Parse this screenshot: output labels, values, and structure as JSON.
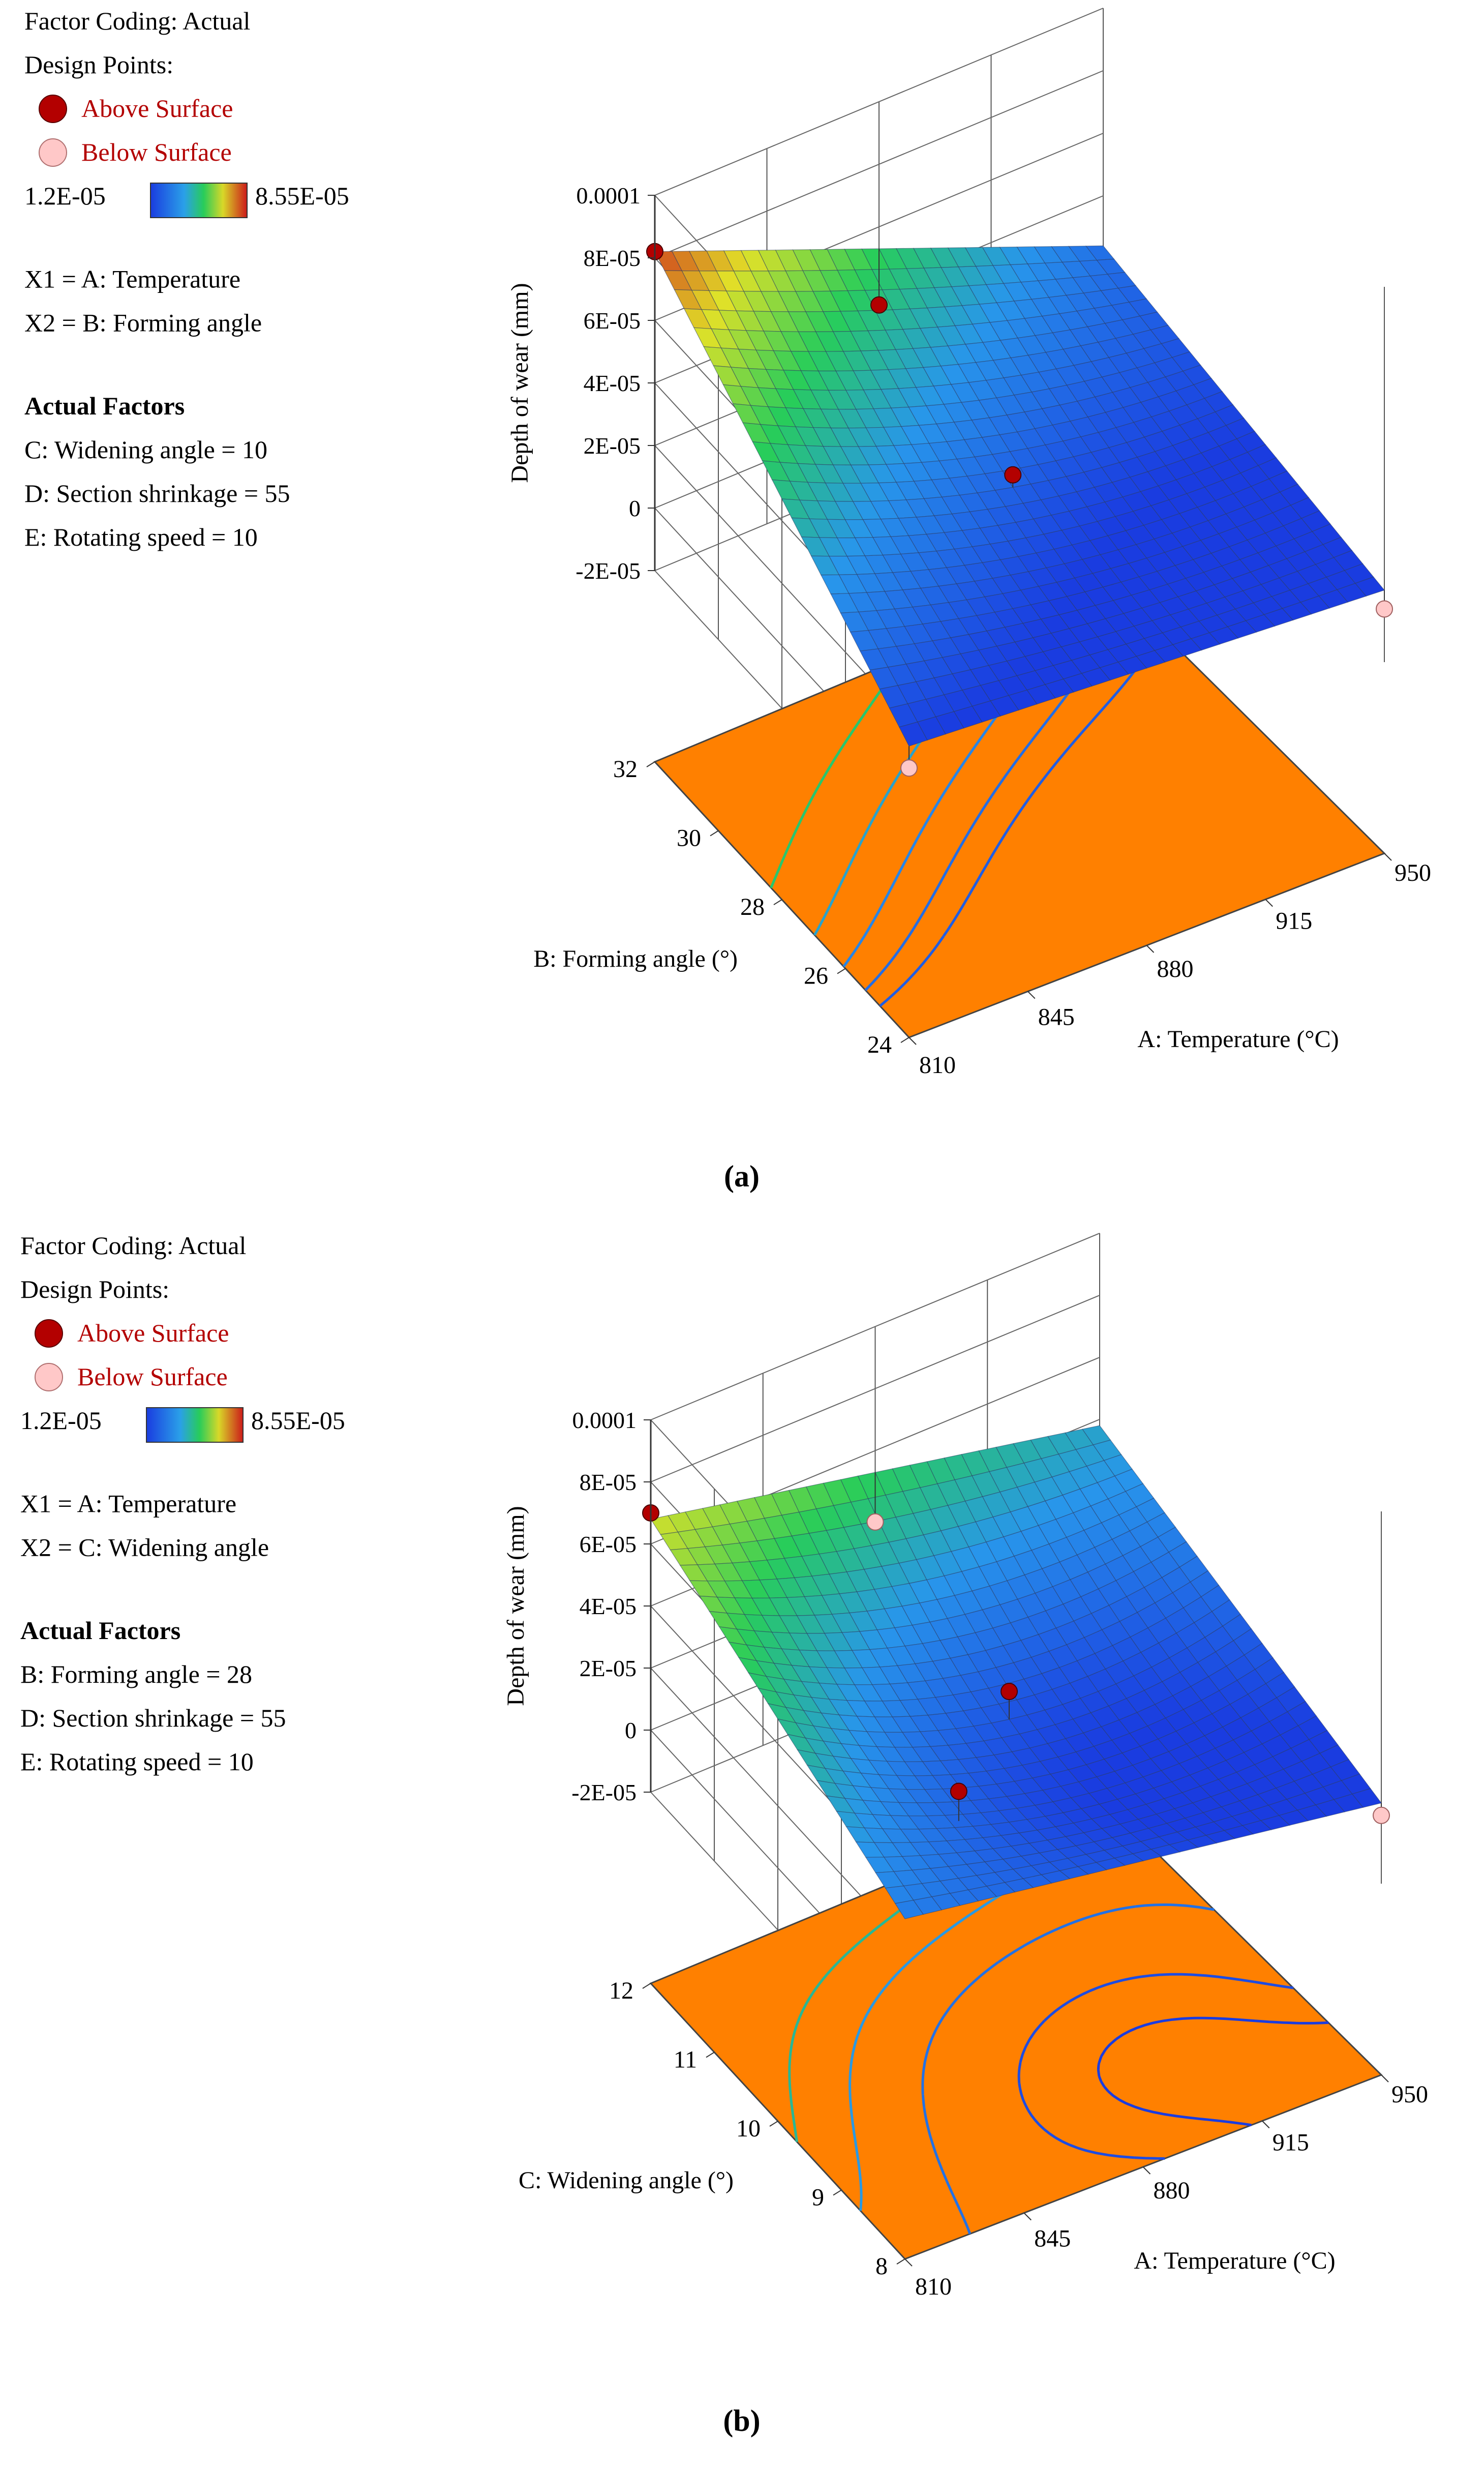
{
  "palette": {
    "orange": "#ff8000",
    "high": "#cc1a1a",
    "low": "#1a3ce0",
    "above": "#b30000",
    "below": "#ffc8c8",
    "legend_text": "#b30000"
  },
  "chart_data": [
    {
      "type": "surface3d",
      "panel_label": "(a)",
      "legend": {
        "coding": "Factor Coding: Actual",
        "design_points": "Design Points:",
        "above": "Above Surface",
        "below": "Below Surface",
        "min": "1.2E-05",
        "max": "8.55E-05"
      },
      "x1": "X1 = A: Temperature",
      "x2": "X2 = B: Forming angle",
      "actual_factors_title": "Actual Factors",
      "actual_factors": [
        "C: Widening angle = 10",
        "D: Section shrinkage = 55",
        "E: Rotating speed = 10"
      ],
      "xlabel": "A: Temperature (°C)",
      "ylabel": "B: Forming angle (°)",
      "zlabel": "Depth of wear (mm)",
      "x_ticks": [
        "810",
        "845",
        "880",
        "915",
        "950"
      ],
      "y_ticks": [
        "24",
        "26",
        "28",
        "30",
        "32"
      ],
      "z_ticks": [
        "-2E-05",
        "0",
        "2E-05",
        "4E-05",
        "6E-05",
        "8E-05",
        "0.0001"
      ],
      "xlim": [
        810,
        950
      ],
      "ylim": [
        24,
        32
      ],
      "zlim": [
        -2e-05,
        0.0001
      ],
      "surface": {
        "z00": 1.2e-05,
        "z01": 8.2e-05,
        "z10": 3e-06,
        "z11": 2.4e-05,
        "zc": 2.1e-05
      },
      "design_points": [
        {
          "x": 810,
          "y": 32,
          "z": 8.2e-05,
          "type": "above"
        },
        {
          "x": 880,
          "y": 32,
          "z": 3.5e-05,
          "type": "above"
        },
        {
          "x": 880,
          "y": 28,
          "z": 2.5e-05,
          "type": "above"
        },
        {
          "x": 950,
          "y": 24,
          "z": -3e-06,
          "type": "below"
        },
        {
          "x": 810,
          "y": 24,
          "z": 5e-06,
          "type": "below"
        }
      ],
      "contour_levels": [
        5e-05,
        3.8e-05,
        3e-05,
        2.4e-05,
        2e-05
      ]
    },
    {
      "type": "surface3d",
      "panel_label": "(b)",
      "legend": {
        "coding": "Factor Coding: Actual",
        "design_points": "Design Points:",
        "above": "Above Surface",
        "below": "Below Surface",
        "min": "1.2E-05",
        "max": "8.55E-05"
      },
      "x1": "X1 = A: Temperature",
      "x2": "X2 = C: Widening angle",
      "actual_factors_title": "Actual Factors",
      "actual_factors": [
        "B: Forming angle = 28",
        "D: Section shrinkage = 55",
        "E: Rotating speed = 10"
      ],
      "xlabel": "A: Temperature (°C)",
      "ylabel": "C: Widening angle (°)",
      "zlabel": "Depth of wear (mm)",
      "x_ticks": [
        "810",
        "845",
        "880",
        "915",
        "950"
      ],
      "y_ticks": [
        "8",
        "9",
        "10",
        "11",
        "12"
      ],
      "z_ticks": [
        "-2E-05",
        "0",
        "2E-05",
        "4E-05",
        "6E-05",
        "8E-05",
        "0.0001"
      ],
      "xlim": [
        810,
        950
      ],
      "ylim": [
        8,
        12
      ],
      "zlim": [
        -2e-05,
        0.0001
      ],
      "surface": {
        "z00": 2.8e-05,
        "z01": 6.8e-05,
        "z10": 6e-06,
        "z11": 3.8e-05,
        "zc": 1.8e-05
      },
      "design_points": [
        {
          "x": 810,
          "y": 12,
          "z": 7e-05,
          "type": "above"
        },
        {
          "x": 880,
          "y": 10,
          "z": 2.7e-05,
          "type": "above"
        },
        {
          "x": 845,
          "y": 9,
          "z": 3.2e-05,
          "type": "above"
        },
        {
          "x": 880,
          "y": 12,
          "z": 3.7e-05,
          "type": "below"
        },
        {
          "x": 950,
          "y": 8,
          "z": 2e-06,
          "type": "below"
        }
      ],
      "contour_levels": [
        4.5e-05,
        3.5e-05,
        2.5e-05,
        1.6e-05,
        1.2e-05
      ]
    }
  ]
}
